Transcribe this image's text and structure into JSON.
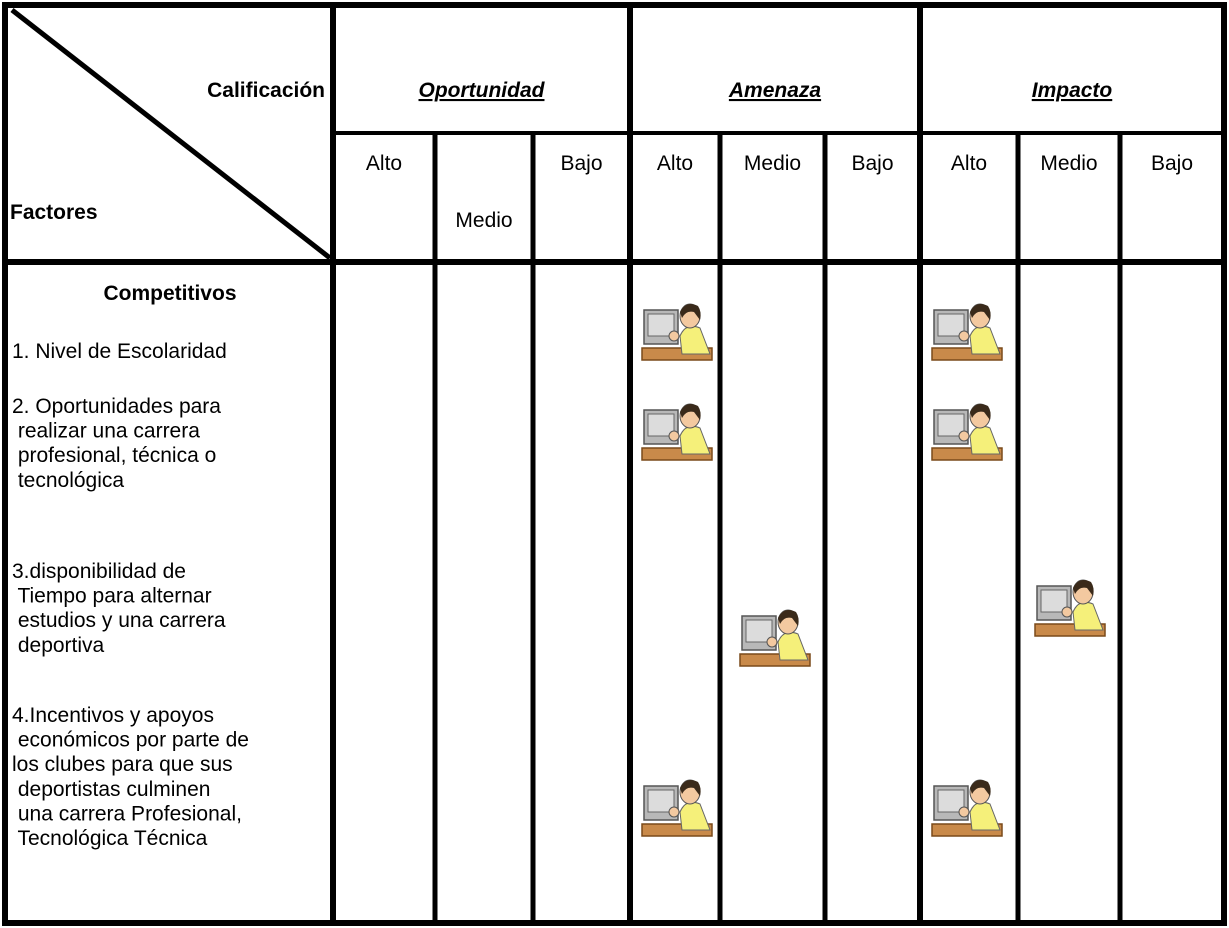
{
  "header": {
    "corner_top": "Calificación",
    "corner_bottom": "Factores",
    "groups": [
      {
        "title": "Oportunidad",
        "levels": [
          "Alto",
          "Medio",
          "Bajo"
        ]
      },
      {
        "title": "Amenaza",
        "levels": [
          "Alto",
          "Medio",
          "Bajo"
        ]
      },
      {
        "title": "Impacto",
        "levels": [
          "Alto",
          "Medio",
          "Bajo"
        ]
      }
    ]
  },
  "body": {
    "section": "Competitivos",
    "factors": [
      [
        "1. Nivel de Escolaridad"
      ],
      [
        "2. Oportunidades para",
        " realizar una carrera",
        " profesional, técnica o",
        " tecnológica"
      ],
      [
        "3.disponibilidad de",
        " Tiempo para alternar",
        " estudios y una carrera",
        " deportiva"
      ],
      [
        "4.Incentivos y apoyos",
        " económicos por parte de",
        "los clubes para que sus",
        " deportistas culminen",
        " una carrera Profesional,",
        " Tecnológica Técnica"
      ]
    ]
  }
}
